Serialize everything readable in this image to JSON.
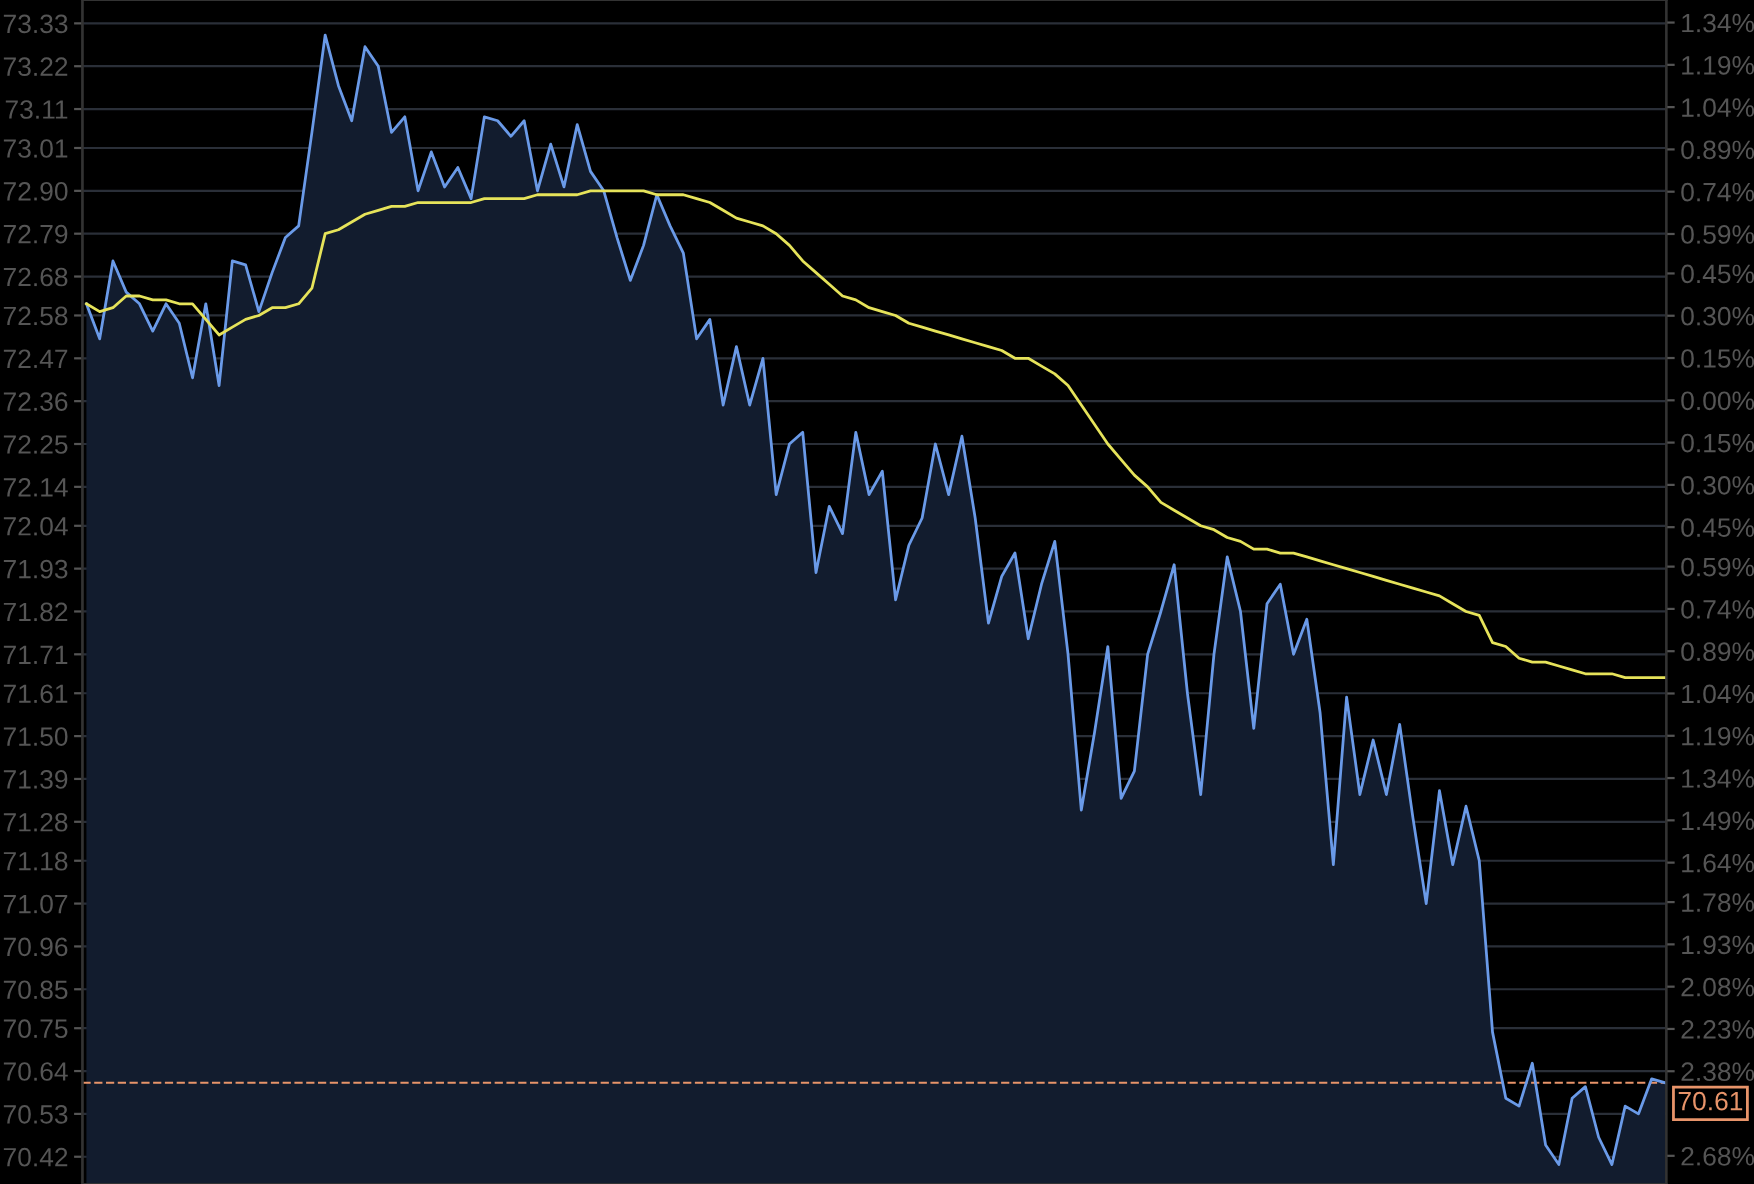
{
  "chart_data": {
    "type": "area",
    "categories": [
      null,
      null,
      null,
      null,
      null,
      null,
      null,
      null,
      null,
      null,
      null,
      null,
      null,
      null,
      null,
      null,
      null,
      null,
      null,
      null,
      null,
      null,
      null,
      null,
      null,
      null,
      null,
      null,
      null,
      null,
      null,
      null,
      null,
      null,
      null,
      null,
      null,
      null,
      null,
      null,
      null,
      null,
      null,
      null,
      null,
      null,
      null,
      null,
      null,
      null,
      null,
      null,
      null,
      null,
      null,
      null,
      null,
      null,
      null,
      null,
      null,
      null,
      null,
      null,
      null,
      null,
      null,
      null,
      null,
      null,
      null,
      null,
      null,
      null,
      null,
      null,
      null,
      null,
      null,
      null,
      null,
      null,
      null,
      null,
      null,
      null,
      null,
      null,
      null,
      null,
      null,
      null,
      null,
      null,
      null,
      null,
      null,
      null,
      null,
      null,
      null,
      null,
      null,
      null,
      null,
      null,
      null,
      null,
      null,
      null,
      null,
      null,
      null,
      null,
      null,
      null,
      null,
      null,
      null,
      null
    ],
    "ylim": [
      70.35,
      73.39
    ],
    "yticks": [
      73.33,
      73.22,
      73.11,
      73.01,
      {
        "value": 72.9,
        "label": "72.90"
      },
      72.79,
      72.68,
      72.58,
      72.47,
      72.36,
      72.25,
      72.14,
      72.04,
      71.93,
      71.82,
      71.71,
      71.61,
      {
        "value": 71.5,
        "label": "71.50"
      },
      71.39,
      71.28,
      71.18,
      71.07,
      70.96,
      70.85,
      70.75,
      70.64,
      70.53,
      70.42
    ],
    "y2lim": [
      -2.78,
      1.42
    ],
    "y2ticks": [
      {
        "value": 1.34,
        "label": "1.34%"
      },
      {
        "value": 1.19,
        "label": "1.19%"
      },
      {
        "value": 1.04,
        "label": "1.04%"
      },
      {
        "value": 0.89,
        "label": "0.89%"
      },
      {
        "value": 0.74,
        "label": "0.74%"
      },
      {
        "value": 0.59,
        "label": "0.59%"
      },
      {
        "value": 0.45,
        "label": "0.45%"
      },
      {
        "value": 0.3,
        "label": "0.30%"
      },
      {
        "value": 0.15,
        "label": "0.15%"
      },
      {
        "value": 0,
        "label": "0.00%"
      },
      {
        "value": -0.15,
        "label": "0.15%"
      },
      {
        "value": -0.3,
        "label": "0.30%"
      },
      {
        "value": -0.45,
        "label": "0.45%"
      },
      {
        "value": -0.59,
        "label": "0.59%"
      },
      {
        "value": -0.74,
        "label": "0.74%"
      },
      {
        "value": -0.89,
        "label": "0.89%"
      },
      {
        "value": -1.04,
        "label": "1.04%"
      },
      {
        "value": -1.19,
        "label": "1.19%"
      },
      {
        "value": -1.34,
        "label": "1.34%"
      },
      {
        "value": -1.49,
        "label": "1.49%"
      },
      {
        "value": -1.64,
        "label": "1.64%"
      },
      {
        "value": -1.78,
        "label": "1.78%"
      },
      {
        "value": -1.93,
        "label": "1.93%"
      },
      {
        "value": -2.08,
        "label": "2.08%"
      },
      {
        "value": -2.23,
        "label": "2.23%"
      },
      {
        "value": -2.38,
        "label": "2.38%"
      },
      {
        "value": -2.68,
        "label": "2.68%"
      }
    ],
    "grid": "y",
    "legend": false,
    "ref_lines": [
      {
        "axis": "y",
        "value": 70.61,
        "label": "70.61",
        "color": "#e8946a",
        "line_style": "dashed"
      }
    ],
    "series": [
      {
        "color": "#6a9ae8",
        "values": [
          72.61,
          72.52,
          72.72,
          72.64,
          72.61,
          72.54,
          72.61,
          72.56,
          72.42,
          72.61,
          72.4,
          72.72,
          72.71,
          72.59,
          72.69,
          72.78,
          72.81,
          73.05,
          73.3,
          73.17,
          73.08,
          73.27,
          73.22,
          73.05,
          73.09,
          72.9,
          73.0,
          72.91,
          72.96,
          72.88,
          73.09,
          73.08,
          73.04,
          73.08,
          72.9,
          73.02,
          72.91,
          73.07,
          72.95,
          72.9,
          72.78,
          72.67,
          72.76,
          72.89,
          72.81,
          72.74,
          72.52,
          72.57,
          72.35,
          72.5,
          72.35,
          72.47,
          72.12,
          72.25,
          72.28,
          71.92,
          72.09,
          72.02,
          72.28,
          72.12,
          72.18,
          71.85,
          71.99,
          72.06,
          72.25,
          72.12,
          72.27,
          72.06,
          71.79,
          71.91,
          71.97,
          71.75,
          71.89,
          72.0,
          71.71,
          71.31,
          71.51,
          71.73,
          71.34,
          71.41,
          71.71,
          71.82,
          71.94,
          71.61,
          71.35,
          71.71,
          71.96,
          71.82,
          71.52,
          71.84,
          71.89,
          71.71,
          71.8,
          71.56,
          71.17,
          71.6,
          71.35,
          71.49,
          71.35,
          71.53,
          71.29,
          71.07,
          71.36,
          71.17,
          71.32,
          71.18,
          70.74,
          70.57,
          70.55,
          70.66,
          70.45,
          70.4,
          70.57,
          70.6,
          70.47,
          70.4,
          70.55,
          70.53,
          70.62,
          70.61
        ]
      },
      {
        "type": "line",
        "color": "#e6e35a",
        "values": [
          72.61,
          72.59,
          72.6,
          72.63,
          72.63,
          72.62,
          72.62,
          72.61,
          72.61,
          72.57,
          72.53,
          72.55,
          72.57,
          72.58,
          72.6,
          72.6,
          72.61,
          72.65,
          72.79,
          72.8,
          72.82,
          72.84,
          72.85,
          72.86,
          72.86,
          72.87,
          72.87,
          72.87,
          72.87,
          72.87,
          72.88,
          72.88,
          72.88,
          72.88,
          72.89,
          72.89,
          72.89,
          72.89,
          72.9,
          72.9,
          72.9,
          72.9,
          72.9,
          72.89,
          72.89,
          72.89,
          72.88,
          72.87,
          72.85,
          72.83,
          72.82,
          72.81,
          72.79,
          72.76,
          72.72,
          72.69,
          72.66,
          72.63,
          72.62,
          72.6,
          72.59,
          72.58,
          72.56,
          72.55,
          72.54,
          72.53,
          72.52,
          72.51,
          72.5,
          72.49,
          72.47,
          72.47,
          72.45,
          72.43,
          72.4,
          72.35,
          72.3,
          72.25,
          72.21,
          72.17,
          72.14,
          72.1,
          72.08,
          72.06,
          72.04,
          72.03,
          72.01,
          72.0,
          71.98,
          71.98,
          71.97,
          71.97,
          71.96,
          71.95,
          71.94,
          71.93,
          71.92,
          71.91,
          71.9,
          71.89,
          71.88,
          71.87,
          71.86,
          71.84,
          71.82,
          71.81,
          71.74,
          71.73,
          71.7,
          71.69,
          71.69,
          71.68,
          71.67,
          71.66,
          71.66,
          71.66,
          71.65,
          71.65,
          71.65,
          71.65
        ]
      }
    ]
  }
}
